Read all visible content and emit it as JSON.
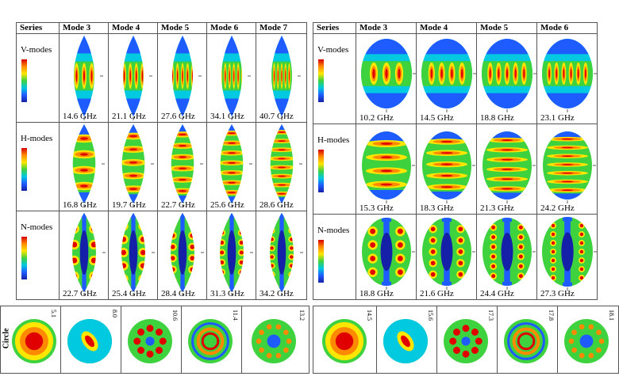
{
  "left_table": {
    "header_series": "Series",
    "columns": [
      "Mode 3",
      "Mode 4",
      "Mode 5",
      "Mode 6",
      "Mode 7"
    ],
    "rows": [
      {
        "label": "V-modes",
        "freqs": [
          "14.6 GHz",
          "21.1 GHz",
          "27.6 GHz",
          "34.1 GHz",
          "40.7 GHz"
        ]
      },
      {
        "label": "H-modes",
        "freqs": [
          "16.8 GHz",
          "19.7 GHz",
          "22.7 GHz",
          "25.6 GHz",
          "28.6 GHz"
        ]
      },
      {
        "label": "N-modes",
        "freqs": [
          "22.7 GHz",
          "25.4 GHz",
          "28.4 GHz",
          "31.3 GHz",
          "34.2 GHz"
        ]
      }
    ]
  },
  "right_table": {
    "header_series": "Series",
    "columns": [
      "Mode 3",
      "Mode 4",
      "Mode 5",
      "Mode 6"
    ],
    "rows": [
      {
        "label": "V-modes",
        "freqs": [
          "10.2 GHz",
          "14.5 GHz",
          "18.8 GHz",
          "23.1 GHz"
        ]
      },
      {
        "label": "H-modes",
        "freqs": [
          "15.3 GHz",
          "18.3 GHz",
          "21.3 GHz",
          "24.2 GHz"
        ]
      },
      {
        "label": "N-modes",
        "freqs": [
          "18.8 GHz",
          "21.6 GHz",
          "24.4 GHz",
          "27.3 GHz"
        ]
      }
    ]
  },
  "circle_row": {
    "label": "Circle",
    "values": [
      "5.1",
      "8.0",
      "10.6",
      "11.4",
      "13.2",
      "14.5",
      "15.6",
      "17.3",
      "17.8",
      "18.1"
    ]
  },
  "colors": {
    "red": "#e00000",
    "orange": "#ff8a00",
    "yellow": "#ffe600",
    "green": "#3fd23f",
    "cyan": "#00c9e0",
    "blue": "#1f5cff",
    "navy": "#1420a8"
  }
}
